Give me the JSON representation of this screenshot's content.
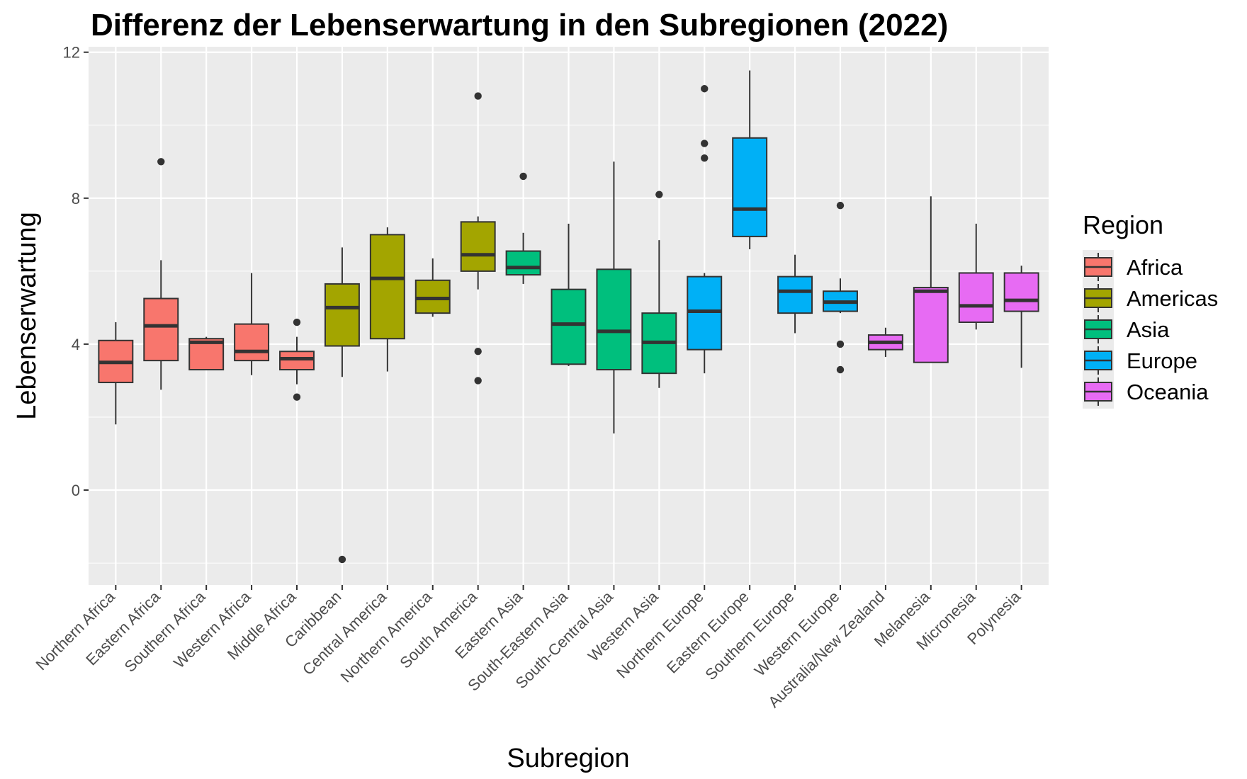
{
  "chart_data": {
    "type": "boxplot",
    "title": "Differenz der Lebenserwartung in den Subregionen (2022)",
    "xlabel": "Subregion",
    "ylabel": "Lebenserwartung",
    "ylim": [
      -2.6,
      12.15
    ],
    "yticks": [
      0,
      4,
      8,
      12
    ],
    "grid": true,
    "legend": {
      "title": "Region",
      "position": "right"
    },
    "colors": {
      "Africa": "#F8766D",
      "Americas": "#A3A500",
      "Asia": "#00BF7D",
      "Europe": "#00B0F6",
      "Oceania": "#E76BF3"
    },
    "groups": [
      "Africa",
      "Americas",
      "Asia",
      "Europe",
      "Oceania"
    ],
    "categories": [
      "Northern Africa",
      "Eastern Africa",
      "Southern Africa",
      "Western Africa",
      "Middle Africa",
      "Caribbean",
      "Central America",
      "Northern America",
      "South America",
      "Eastern Asia",
      "South-Eastern Asia",
      "South-Central Asia",
      "Western Asia",
      "Northern Europe",
      "Eastern Europe",
      "Southern Europe",
      "Western Europe",
      "Australia/New Zealand",
      "Melanesia",
      "Micronesia",
      "Polynesia"
    ],
    "boxes": [
      {
        "category": "Northern Africa",
        "group": "Africa",
        "min": 1.8,
        "q1": 2.95,
        "median": 3.5,
        "q3": 4.1,
        "max": 4.6,
        "outliers": []
      },
      {
        "category": "Eastern Africa",
        "group": "Africa",
        "min": 2.75,
        "q1": 3.55,
        "median": 4.5,
        "q3": 5.25,
        "max": 6.3,
        "outliers": [
          9.0
        ]
      },
      {
        "category": "Southern Africa",
        "group": "Africa",
        "min": 3.3,
        "q1": 3.3,
        "median": 4.05,
        "q3": 4.15,
        "max": 4.2,
        "outliers": []
      },
      {
        "category": "Western Africa",
        "group": "Africa",
        "min": 3.15,
        "q1": 3.55,
        "median": 3.8,
        "q3": 4.55,
        "max": 5.95,
        "outliers": []
      },
      {
        "category": "Middle Africa",
        "group": "Africa",
        "min": 2.9,
        "q1": 3.3,
        "median": 3.6,
        "q3": 3.8,
        "max": 4.2,
        "outliers": [
          2.55,
          4.6
        ]
      },
      {
        "category": "Caribbean",
        "group": "Americas",
        "min": 3.1,
        "q1": 3.95,
        "median": 5.0,
        "q3": 5.65,
        "max": 6.65,
        "outliers": [
          -1.9
        ]
      },
      {
        "category": "Central America",
        "group": "Americas",
        "min": 3.25,
        "q1": 4.15,
        "median": 5.8,
        "q3": 7.0,
        "max": 7.2,
        "outliers": []
      },
      {
        "category": "Northern America",
        "group": "Americas",
        "min": 4.75,
        "q1": 4.85,
        "median": 5.25,
        "q3": 5.75,
        "max": 6.35,
        "outliers": []
      },
      {
        "category": "South America",
        "group": "Americas",
        "min": 5.5,
        "q1": 6.0,
        "median": 6.45,
        "q3": 7.35,
        "max": 7.5,
        "outliers": [
          10.8,
          3.8,
          3.0
        ]
      },
      {
        "category": "Eastern Asia",
        "group": "Asia",
        "min": 5.65,
        "q1": 5.9,
        "median": 6.1,
        "q3": 6.55,
        "max": 7.05,
        "outliers": [
          8.6
        ]
      },
      {
        "category": "South-Eastern Asia",
        "group": "Asia",
        "min": 3.4,
        "q1": 3.45,
        "median": 4.55,
        "q3": 5.5,
        "max": 7.3,
        "outliers": []
      },
      {
        "category": "South-Central Asia",
        "group": "Asia",
        "min": 1.55,
        "q1": 3.3,
        "median": 4.35,
        "q3": 6.05,
        "max": 9.0,
        "outliers": []
      },
      {
        "category": "Western Asia",
        "group": "Asia",
        "min": 2.8,
        "q1": 3.2,
        "median": 4.05,
        "q3": 4.85,
        "max": 6.85,
        "outliers": [
          8.1
        ]
      },
      {
        "category": "Northern Europe",
        "group": "Europe",
        "min": 3.2,
        "q1": 3.85,
        "median": 4.9,
        "q3": 5.85,
        "max": 5.95,
        "outliers": [
          11.0,
          9.5,
          9.1
        ]
      },
      {
        "category": "Eastern Europe",
        "group": "Europe",
        "min": 6.6,
        "q1": 6.95,
        "median": 7.7,
        "q3": 9.65,
        "max": 11.5,
        "outliers": []
      },
      {
        "category": "Southern Europe",
        "group": "Europe",
        "min": 4.3,
        "q1": 4.85,
        "median": 5.45,
        "q3": 5.85,
        "max": 6.45,
        "outliers": []
      },
      {
        "category": "Western Europe",
        "group": "Europe",
        "min": 4.85,
        "q1": 4.9,
        "median": 5.15,
        "q3": 5.45,
        "max": 5.8,
        "outliers": [
          7.8,
          4.0,
          3.3
        ]
      },
      {
        "category": "Australia/New Zealand",
        "group": "Oceania",
        "min": 3.65,
        "q1": 3.85,
        "median": 4.05,
        "q3": 4.25,
        "max": 4.45,
        "outliers": []
      },
      {
        "category": "Melanesia",
        "group": "Oceania",
        "min": 3.5,
        "q1": 3.5,
        "median": 5.45,
        "q3": 5.55,
        "max": 8.05,
        "outliers": []
      },
      {
        "category": "Micronesia",
        "group": "Oceania",
        "min": 4.4,
        "q1": 4.6,
        "median": 5.05,
        "q3": 5.95,
        "max": 7.3,
        "outliers": []
      },
      {
        "category": "Polynesia",
        "group": "Oceania",
        "min": 3.35,
        "q1": 4.9,
        "median": 5.2,
        "q3": 5.95,
        "max": 6.15,
        "outliers": []
      }
    ]
  }
}
